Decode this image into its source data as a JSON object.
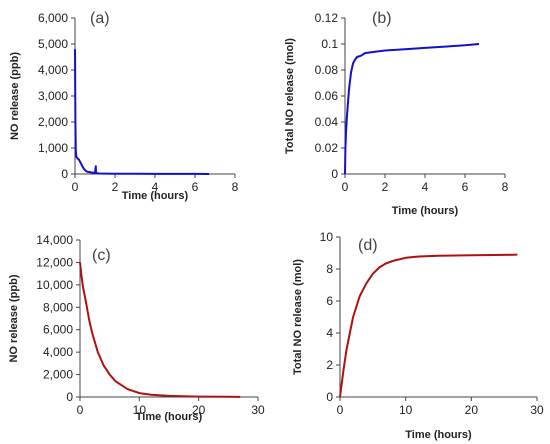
{
  "chart_data": [
    {
      "type": "line",
      "panel_label": "(a)",
      "xlabel": "Time  (hours)",
      "ylabel": "NO  release  (ppb)",
      "xlim": [
        0,
        8
      ],
      "ylim": [
        0,
        6000
      ],
      "xticks": [
        "0",
        "2",
        "4",
        "6",
        "8"
      ],
      "yticks": [
        "0",
        "1,000",
        "2,000",
        "3,000",
        "4,000",
        "5,000",
        "6,000"
      ],
      "color": "#1010d0",
      "series": [
        {
          "x": [
            0,
            0.02,
            0.04,
            0.06,
            0.08,
            0.1,
            0.12,
            0.15,
            0.2,
            0.3,
            0.4,
            0.5,
            0.6,
            0.8,
            1.0,
            1.04,
            1.05,
            1.1,
            1.2,
            1.5,
            2,
            3,
            4,
            5,
            6,
            6.7
          ],
          "y": [
            4800,
            2000,
            900,
            700,
            650,
            620,
            600,
            580,
            550,
            400,
            250,
            150,
            90,
            60,
            40,
            300,
            40,
            25,
            20,
            15,
            10,
            8,
            5,
            3,
            2,
            0
          ]
        }
      ]
    },
    {
      "type": "line",
      "panel_label": "(b)",
      "xlabel": "Time  (hours)",
      "ylabel": "Total  NO  release  (mol)",
      "xlim": [
        0,
        8
      ],
      "ylim": [
        0,
        0.12
      ],
      "xticks": [
        "0",
        "2",
        "4",
        "6",
        "8"
      ],
      "yticks": [
        "0",
        "0.02",
        "0.04",
        "0.06",
        "0.08",
        "0.1",
        "0.12"
      ],
      "color": "#1010d0",
      "series": [
        {
          "x": [
            0,
            0.02,
            0.05,
            0.1,
            0.15,
            0.2,
            0.3,
            0.4,
            0.5,
            0.6,
            0.8,
            1.0,
            1.5,
            2,
            3,
            4,
            5,
            6,
            6.7
          ],
          "y": [
            0,
            0.02,
            0.032,
            0.045,
            0.055,
            0.065,
            0.078,
            0.085,
            0.088,
            0.09,
            0.091,
            0.093,
            0.094,
            0.095,
            0.096,
            0.097,
            0.098,
            0.099,
            0.1
          ]
        }
      ]
    },
    {
      "type": "line",
      "panel_label": "(c)",
      "xlabel": "Time  (hours)",
      "ylabel": "NO  release  (ppb)",
      "xlim": [
        0,
        30
      ],
      "ylim": [
        0,
        14000
      ],
      "xticks": [
        "0",
        "10",
        "20",
        "30"
      ],
      "yticks": [
        "0",
        "2,000",
        "4,000",
        "6,000",
        "8,000",
        "10,000",
        "12,000",
        "14,000"
      ],
      "color": "#b01010",
      "series": [
        {
          "x": [
            0,
            0.2,
            0.5,
            1,
            1.5,
            2,
            3,
            4,
            5,
            6,
            8,
            10,
            12,
            15,
            20,
            25,
            27
          ],
          "y": [
            12000,
            11000,
            9800,
            8500,
            7000,
            5800,
            4000,
            2800,
            2000,
            1400,
            700,
            350,
            200,
            100,
            40,
            20,
            10
          ]
        }
      ]
    },
    {
      "type": "line",
      "panel_label": "(d)",
      "xlabel": "Time  (hours)",
      "ylabel": "Total  NO  release  (mol)",
      "xlim": [
        0,
        30
      ],
      "ylim": [
        0,
        10
      ],
      "xticks": [
        "0",
        "10",
        "20",
        "30"
      ],
      "yticks": [
        "0",
        "2",
        "4",
        "6",
        "8",
        "10"
      ],
      "color": "#b01010",
      "series": [
        {
          "x": [
            0,
            0.5,
            1,
            2,
            3,
            4,
            5,
            6,
            7,
            8,
            10,
            12,
            15,
            20,
            25,
            27
          ],
          "y": [
            0,
            1.6,
            3.0,
            5.0,
            6.3,
            7.1,
            7.7,
            8.1,
            8.35,
            8.5,
            8.7,
            8.78,
            8.83,
            8.86,
            8.88,
            8.9
          ]
        }
      ]
    }
  ]
}
